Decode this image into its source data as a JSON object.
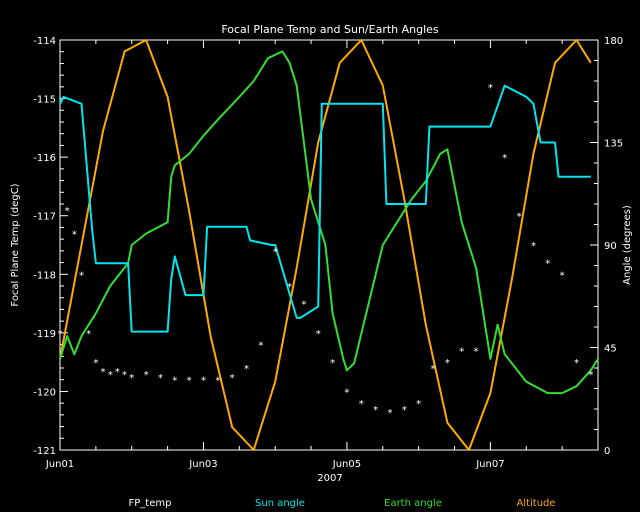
{
  "chart_data": {
    "type": "line",
    "title": "Focal Plane Temp and Sun/Earth Angles",
    "xlabel": "2007",
    "ylabel_left": "Focal Plane Temp (degC)",
    "ylabel_right": "Angle (degrees)",
    "x_ticks": [
      "Jun01",
      "Jun03",
      "Jun05",
      "Jun07"
    ],
    "x_range_days": [
      0,
      7.5
    ],
    "ylim_left": [
      -121,
      -114
    ],
    "y_ticks_left": [
      "-114",
      "-115",
      "-116",
      "-117",
      "-118",
      "-119",
      "-120",
      "-121"
    ],
    "ylim_right": [
      0,
      180
    ],
    "y_ticks_right": [
      "180",
      "135",
      "90",
      "45",
      "0"
    ],
    "legend_placement": "bottom",
    "colors": {
      "FP_temp": "#ffffff",
      "Sun angle": "#00e5ee",
      "Earth angle": "#33dd33",
      "Altitude": "#ffaa00"
    },
    "series": [
      {
        "name": "FP_temp",
        "axis": "left",
        "style": "points",
        "x": [
          0.0,
          0.1,
          0.2,
          0.3,
          0.4,
          0.5,
          0.6,
          0.7,
          0.8,
          0.9,
          1.0,
          1.2,
          1.4,
          1.6,
          1.8,
          2.0,
          2.2,
          2.4,
          2.6,
          2.8,
          3.0,
          3.2,
          3.4,
          3.6,
          3.8,
          4.0,
          4.2,
          4.4,
          4.6,
          4.8,
          5.0,
          5.2,
          5.4,
          5.6,
          5.8,
          6.0,
          6.2,
          6.4,
          6.6,
          6.8,
          7.0,
          7.2,
          7.4
        ],
        "y": [
          -119.0,
          -116.9,
          -117.3,
          -118.0,
          -119.0,
          -119.5,
          -119.65,
          -119.7,
          -119.65,
          -119.7,
          -119.75,
          -119.7,
          -119.75,
          -119.8,
          -119.8,
          -119.8,
          -119.8,
          -119.75,
          -119.6,
          -119.2,
          -117.6,
          -118.2,
          -118.5,
          -119.0,
          -119.5,
          -120.0,
          -120.2,
          -120.3,
          -120.35,
          -120.3,
          -120.2,
          -119.6,
          -119.5,
          -119.3,
          -119.3,
          -114.8,
          -116.0,
          -117.0,
          -117.5,
          -117.8,
          -118.0,
          -119.5,
          -119.7
        ]
      },
      {
        "name": "Sun angle",
        "axis": "right",
        "style": "line",
        "x": [
          0.0,
          0.05,
          0.3,
          0.45,
          0.5,
          0.7,
          0.95,
          1.0,
          1.5,
          1.55,
          1.6,
          1.75,
          2.0,
          2.05,
          2.6,
          2.65,
          2.95,
          3.0,
          3.3,
          3.35,
          3.6,
          3.65,
          4.0,
          4.5,
          4.55,
          4.6,
          5.1,
          5.15,
          5.5,
          6.0,
          6.2,
          6.5,
          6.6,
          6.7,
          6.9,
          6.95,
          7.2,
          7.4
        ],
        "y": [
          152,
          155,
          152,
          96,
          82,
          82,
          82,
          52,
          52,
          75,
          85,
          68,
          68,
          98,
          98,
          92,
          90,
          90,
          58,
          58,
          63,
          152,
          152,
          152,
          108,
          108,
          108,
          142,
          142,
          142,
          160,
          155,
          152,
          135,
          135,
          120,
          120,
          120
        ]
      },
      {
        "name": "Earth angle",
        "axis": "right",
        "style": "line",
        "x": [
          0.0,
          0.1,
          0.2,
          0.3,
          0.5,
          0.7,
          0.95,
          1.0,
          1.2,
          1.5,
          1.55,
          1.6,
          1.8,
          2.0,
          2.2,
          2.5,
          2.7,
          2.9,
          3.1,
          3.2,
          3.3,
          3.5,
          3.7,
          3.8,
          3.95,
          4.0,
          4.1,
          4.5,
          4.7,
          4.9,
          5.1,
          5.2,
          5.3,
          5.4,
          5.6,
          5.8,
          6.0,
          6.1,
          6.2,
          6.3,
          6.5,
          6.8,
          7.0,
          7.2,
          7.4,
          7.5
        ],
        "y": [
          40,
          50,
          42,
          50,
          60,
          72,
          82,
          90,
          95,
          100,
          120,
          125,
          130,
          138,
          145,
          155,
          162,
          172,
          175,
          170,
          160,
          110,
          90,
          60,
          40,
          35,
          38,
          90,
          100,
          110,
          118,
          124,
          130,
          132,
          100,
          80,
          40,
          55,
          42,
          38,
          30,
          25,
          25,
          28,
          35,
          40
        ]
      },
      {
        "name": "Altitude",
        "axis": "right",
        "style": "line",
        "x": [
          0.0,
          0.3,
          0.6,
          0.9,
          1.2,
          1.5,
          1.8,
          2.1,
          2.4,
          2.7,
          3.0,
          3.3,
          3.6,
          3.9,
          4.2,
          4.5,
          4.8,
          5.1,
          5.4,
          5.7,
          6.0,
          6.3,
          6.6,
          6.9,
          7.2,
          7.4
        ],
        "y": [
          40,
          90,
          140,
          175,
          180,
          155,
          105,
          50,
          10,
          0,
          30,
          80,
          135,
          170,
          180,
          160,
          110,
          55,
          12,
          0,
          25,
          75,
          130,
          170,
          180,
          170
        ]
      }
    ]
  }
}
